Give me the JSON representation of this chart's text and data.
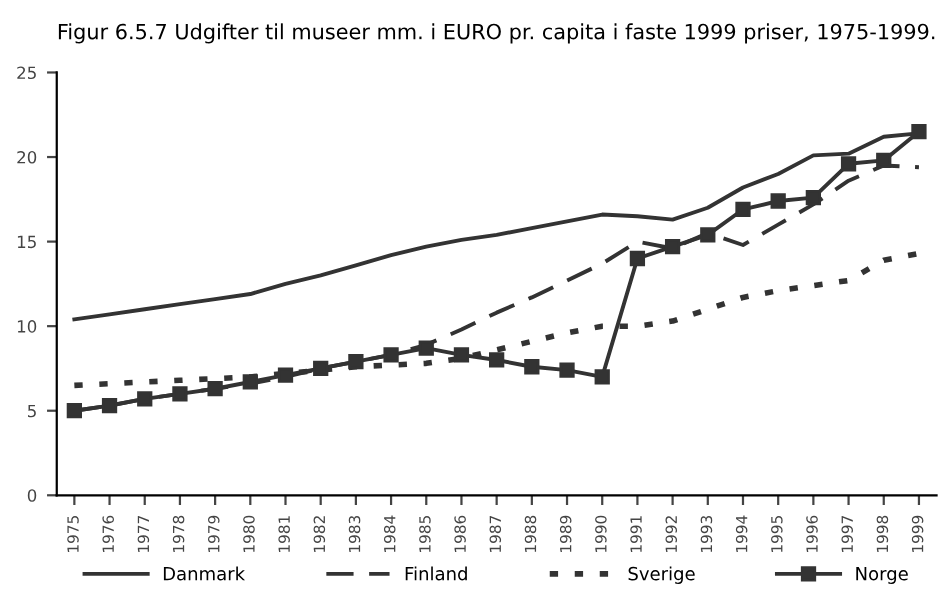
{
  "chart_data": {
    "type": "line",
    "title": "Figur 6.5.7 Udgifter til museer mm. i EURO pr. capita i faste 1999 priser, 1975-1999.",
    "categories": [
      "1975",
      "1976",
      "1977",
      "1978",
      "1979",
      "1980",
      "1981",
      "1982",
      "1983",
      "1984",
      "1985",
      "1986",
      "1987",
      "1988",
      "1989",
      "1990",
      "1991",
      "1992",
      "1993",
      "1994",
      "1995",
      "1996",
      "1997",
      "1998",
      "1999"
    ],
    "ylim": [
      0,
      25
    ],
    "yticks": [
      0,
      5,
      10,
      15,
      20,
      25
    ],
    "grid": false,
    "legend": "bottom",
    "series": [
      {
        "name": "Danmark",
        "color": "#333333",
        "line_style": "solid",
        "marker": "none",
        "values": [
          10.4,
          10.7,
          11.0,
          11.3,
          11.6,
          11.9,
          12.5,
          13.0,
          13.6,
          14.2,
          14.7,
          15.1,
          15.4,
          15.8,
          16.2,
          16.6,
          16.5,
          16.3,
          17.0,
          18.2,
          19.0,
          20.1,
          20.2,
          21.2,
          21.4
        ]
      },
      {
        "name": "Finland",
        "color": "#333333",
        "line_style": "dashed",
        "marker": "none",
        "values": [
          5.0,
          5.3,
          5.7,
          6.0,
          6.3,
          6.6,
          7.0,
          7.5,
          7.9,
          8.3,
          8.9,
          9.8,
          10.8,
          11.7,
          12.7,
          13.7,
          15.0,
          14.6,
          15.5,
          14.8,
          16.0,
          17.2,
          18.6,
          19.5,
          19.4
        ]
      },
      {
        "name": "Sverige",
        "color": "#333333",
        "line_style": "dotted",
        "marker": "none",
        "values": [
          6.5,
          6.6,
          6.7,
          6.8,
          6.9,
          7.0,
          7.2,
          7.4,
          7.6,
          7.7,
          7.8,
          8.1,
          8.6,
          9.1,
          9.6,
          10.0,
          10.0,
          10.3,
          11.0,
          11.7,
          12.1,
          12.4,
          12.7,
          13.9,
          14.3
        ]
      },
      {
        "name": "Norge",
        "color": "#333333",
        "line_style": "solid",
        "marker": "square",
        "values": [
          5.0,
          5.3,
          5.7,
          6.0,
          6.3,
          6.7,
          7.1,
          7.5,
          7.9,
          8.3,
          8.7,
          8.3,
          8.0,
          7.6,
          7.4,
          7.0,
          14.0,
          14.7,
          15.4,
          16.9,
          17.4,
          17.6,
          19.6,
          19.8,
          21.5
        ]
      }
    ]
  }
}
